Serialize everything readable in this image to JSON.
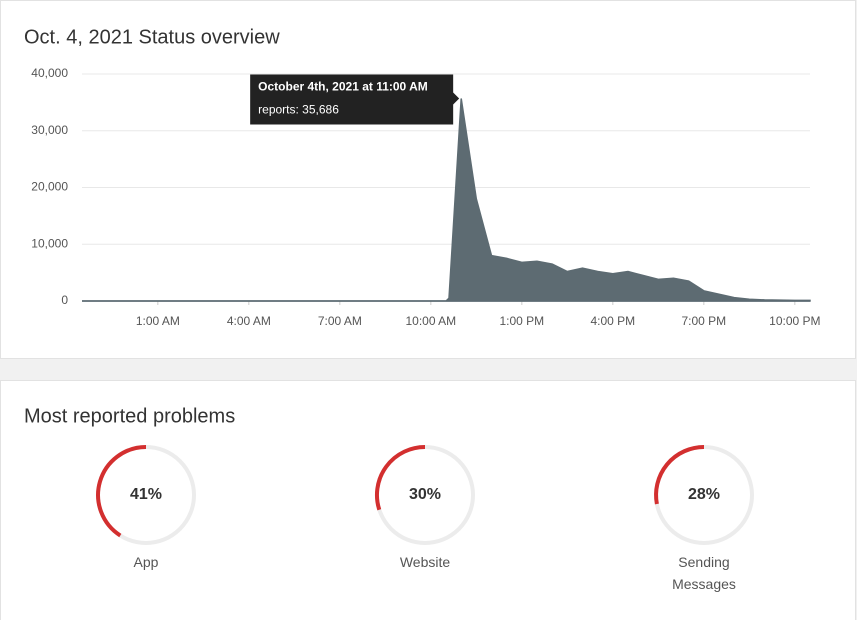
{
  "chart_data": [
    {
      "type": "area",
      "title": "Oct. 4, 2021 Status overview",
      "color": "#5d6b72",
      "grid": true,
      "x": [
        -1.5,
        10.5,
        10.6,
        11,
        11.5,
        12,
        12.5,
        13,
        13.5,
        14,
        14.5,
        15,
        15.5,
        16,
        16.5,
        17,
        17.5,
        18,
        18.5,
        19,
        19.5,
        20,
        20.5,
        21,
        21.5,
        22,
        22.5
      ],
      "values": [
        0,
        0,
        500,
        35686,
        18000,
        8000,
        7500,
        6800,
        7000,
        6500,
        5200,
        5800,
        5200,
        4800,
        5200,
        4500,
        3800,
        4000,
        3500,
        1800,
        1200,
        600,
        300,
        200,
        150,
        100,
        100
      ],
      "xlim": [
        -1.5,
        22.5
      ],
      "xticks": [
        {
          "value": 1,
          "label": "1:00 AM"
        },
        {
          "value": 4,
          "label": "4:00 AM"
        },
        {
          "value": 7,
          "label": "7:00 AM"
        },
        {
          "value": 10,
          "label": "10:00 AM"
        },
        {
          "value": 13,
          "label": "1:00 PM"
        },
        {
          "value": 16,
          "label": "4:00 PM"
        },
        {
          "value": 19,
          "label": "7:00 PM"
        },
        {
          "value": 22,
          "label": "10:00 PM"
        }
      ],
      "ylim": [
        0,
        40000
      ],
      "yticks": [
        0,
        {
          "value": 10000,
          "label": "10,000"
        },
        {
          "value": 20000,
          "label": "20,000"
        },
        {
          "value": 30000,
          "label": "30,000"
        },
        {
          "value": 40000,
          "label": "40,000"
        }
      ],
      "tooltip": {
        "title": "October 4th, 2021 at 11:00 AM",
        "text": "reports: 35,686"
      }
    },
    {
      "type": "gauge",
      "title": "Most reported problems",
      "color": "#d32f2f",
      "categories": [
        "App",
        "Website",
        "Sending Messages"
      ],
      "values": [
        41,
        30,
        28
      ],
      "value_labels": [
        "41%",
        "30%",
        "28%"
      ]
    }
  ]
}
